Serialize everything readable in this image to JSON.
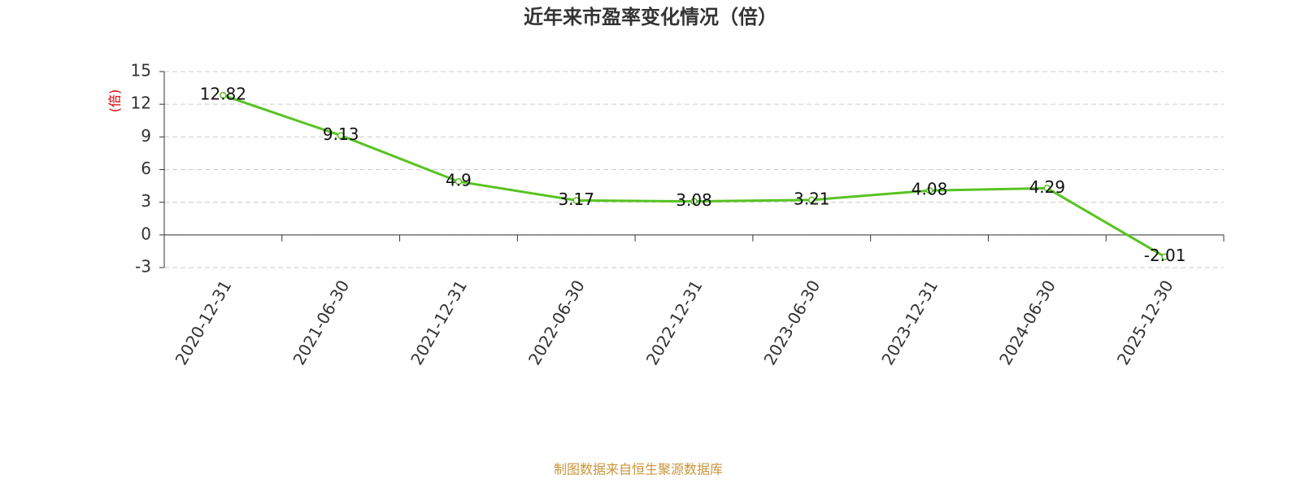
{
  "chart_data": {
    "type": "line",
    "title": "近年来市盈率变化情况（倍）",
    "y_label": "(倍)",
    "categories": [
      "2020-12-31",
      "2021-06-30",
      "2021-12-31",
      "2022-06-30",
      "2022-12-31",
      "2023-06-30",
      "2023-12-31",
      "2024-06-30",
      "2025-12-30"
    ],
    "values": [
      12.82,
      9.13,
      4.9,
      3.17,
      3.08,
      3.21,
      4.08,
      4.29,
      -2.01
    ],
    "color": "#58c322",
    "ylim": [
      -3,
      15
    ],
    "yticks": [
      -3,
      0,
      3,
      6,
      9,
      12,
      15
    ],
    "grid": true,
    "source": "制图数据来自恒生聚源数据库"
  }
}
